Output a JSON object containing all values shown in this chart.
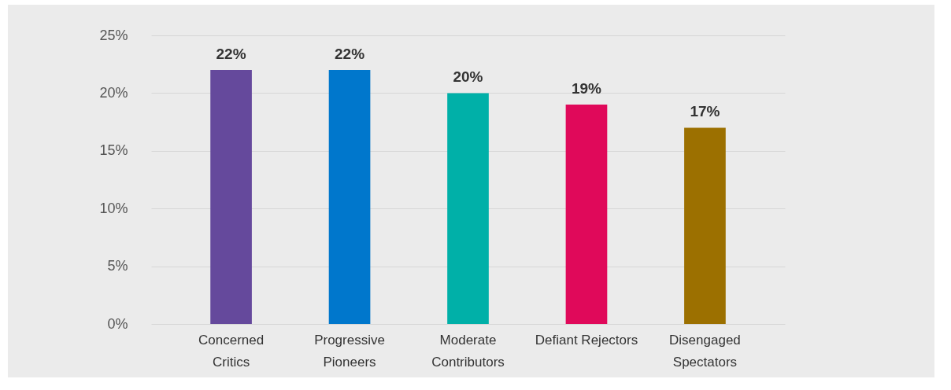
{
  "chart_data": {
    "type": "bar",
    "categories": [
      "Concerned\nCritics",
      "Progressive\nPioneers",
      "Moderate\nContributors",
      "Defiant Rejectors",
      "Disengaged\nSpectators"
    ],
    "values": [
      22,
      22,
      20,
      19,
      17
    ],
    "colors": [
      "#65499c",
      "#0077cc",
      "#00b0a8",
      "#e0095a",
      "#9c7000"
    ],
    "value_labels": [
      "22%",
      "22%",
      "20%",
      "19%",
      "17%"
    ],
    "ylim": [
      0,
      25
    ],
    "yticks": [
      {
        "value": 0,
        "label": "0%"
      },
      {
        "value": 5,
        "label": "5%"
      },
      {
        "value": 10,
        "label": "10%"
      },
      {
        "value": 15,
        "label": "15%"
      },
      {
        "value": 20,
        "label": "20%"
      },
      {
        "value": 25,
        "label": "25%"
      }
    ],
    "grid": "y"
  }
}
